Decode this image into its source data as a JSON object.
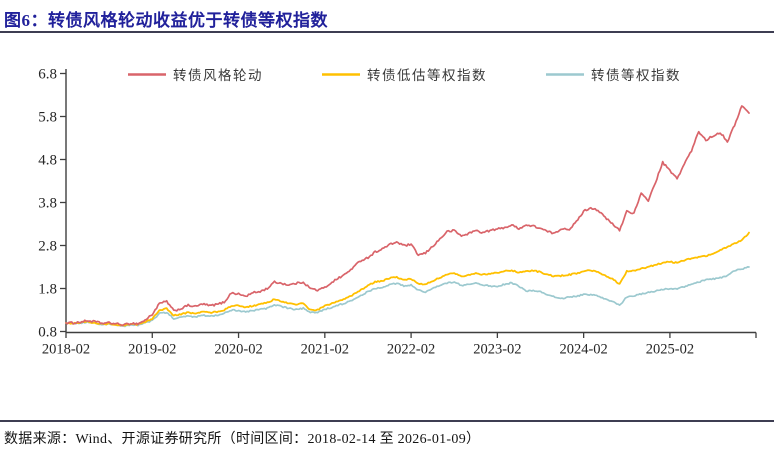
{
  "header": {
    "title": "图6：转债风格轮动收益优于转债等权指数"
  },
  "footer": {
    "source_note": "数据来源：Wind、开源证券研究所（时间区间：2018-02-14 至 2026-01-09）"
  },
  "colors": {
    "title_blue": "#21219B",
    "rule_dark": "#3d3d52",
    "axis": "#3f3f3f",
    "rotation_red": "#D9646A",
    "undervalued_yellow": "#FFC000",
    "equal_weight_teal": "#9CC9CF"
  },
  "chart_data": {
    "type": "line",
    "title": "",
    "xlabel": "",
    "ylabel": "",
    "grid": false,
    "legend_position": "top",
    "ylim": [
      0.8,
      6.8
    ],
    "y_ticks": [
      0.8,
      1.8,
      2.8,
      3.8,
      4.8,
      5.8,
      6.8
    ],
    "x_start": "2018-02",
    "x_end": "2026-01",
    "frequency": "monthly",
    "x_tick_labels": [
      "2018-02",
      "2019-02",
      "2020-02",
      "2021-02",
      "2022-02",
      "2023-02",
      "2024-02",
      "2025-02"
    ],
    "x_tick_indices": [
      0,
      12,
      24,
      36,
      48,
      60,
      72,
      84
    ],
    "series": [
      {
        "name": "转债风格轮动",
        "color": "#D9646A",
        "values": [
          1.0,
          1.0,
          1.02,
          1.05,
          1.03,
          0.99,
          1.0,
          0.98,
          0.95,
          0.99,
          0.98,
          1.06,
          1.2,
          1.45,
          1.5,
          1.28,
          1.33,
          1.41,
          1.38,
          1.44,
          1.4,
          1.43,
          1.48,
          1.7,
          1.67,
          1.62,
          1.7,
          1.73,
          1.8,
          1.95,
          1.92,
          1.88,
          1.92,
          1.95,
          1.8,
          1.76,
          1.82,
          1.95,
          2.05,
          2.15,
          2.3,
          2.45,
          2.52,
          2.65,
          2.72,
          2.82,
          2.88,
          2.8,
          2.82,
          2.58,
          2.62,
          2.78,
          2.95,
          3.12,
          3.15,
          3.02,
          3.08,
          3.15,
          3.1,
          3.15,
          3.18,
          3.22,
          3.27,
          3.2,
          3.27,
          3.25,
          3.2,
          3.12,
          3.08,
          3.2,
          3.18,
          3.35,
          3.6,
          3.68,
          3.62,
          3.45,
          3.3,
          3.15,
          3.6,
          3.55,
          4.0,
          3.85,
          4.27,
          4.73,
          4.54,
          4.35,
          4.7,
          5.0,
          5.45,
          5.25,
          5.35,
          5.43,
          5.22,
          5.6,
          6.05,
          5.88
        ]
      },
      {
        "name": "转债低估等权指数",
        "color": "#FFC000",
        "values": [
          1.0,
          0.99,
          1.01,
          1.03,
          1.0,
          0.97,
          0.98,
          0.96,
          0.93,
          0.97,
          0.96,
          1.02,
          1.1,
          1.3,
          1.33,
          1.17,
          1.2,
          1.24,
          1.22,
          1.26,
          1.24,
          1.26,
          1.3,
          1.4,
          1.4,
          1.36,
          1.4,
          1.43,
          1.47,
          1.55,
          1.5,
          1.45,
          1.43,
          1.46,
          1.3,
          1.3,
          1.4,
          1.45,
          1.52,
          1.58,
          1.66,
          1.76,
          1.87,
          1.95,
          1.98,
          2.04,
          2.06,
          2.0,
          2.02,
          1.92,
          1.9,
          1.98,
          2.05,
          2.12,
          2.16,
          2.08,
          2.12,
          2.16,
          2.12,
          2.15,
          2.17,
          2.2,
          2.22,
          2.17,
          2.2,
          2.22,
          2.18,
          2.12,
          2.08,
          2.1,
          2.12,
          2.15,
          2.2,
          2.22,
          2.18,
          2.1,
          2.02,
          1.9,
          2.2,
          2.22,
          2.26,
          2.3,
          2.35,
          2.4,
          2.42,
          2.4,
          2.46,
          2.5,
          2.53,
          2.56,
          2.6,
          2.7,
          2.76,
          2.85,
          2.92,
          3.1
        ]
      },
      {
        "name": "转债等权指数",
        "color": "#9CC9CF",
        "values": [
          1.0,
          0.99,
          1.0,
          1.02,
          0.99,
          0.96,
          0.97,
          0.95,
          0.92,
          0.96,
          0.95,
          1.0,
          1.05,
          1.22,
          1.24,
          1.1,
          1.13,
          1.16,
          1.14,
          1.18,
          1.16,
          1.18,
          1.22,
          1.3,
          1.29,
          1.25,
          1.29,
          1.31,
          1.34,
          1.42,
          1.38,
          1.34,
          1.31,
          1.34,
          1.24,
          1.24,
          1.32,
          1.36,
          1.42,
          1.47,
          1.54,
          1.63,
          1.73,
          1.8,
          1.83,
          1.89,
          1.92,
          1.86,
          1.88,
          1.76,
          1.72,
          1.8,
          1.87,
          1.93,
          1.95,
          1.87,
          1.89,
          1.93,
          1.88,
          1.86,
          1.84,
          1.9,
          1.93,
          1.85,
          1.74,
          1.76,
          1.72,
          1.65,
          1.6,
          1.57,
          1.6,
          1.62,
          1.66,
          1.66,
          1.62,
          1.56,
          1.5,
          1.41,
          1.6,
          1.63,
          1.67,
          1.71,
          1.74,
          1.78,
          1.8,
          1.79,
          1.84,
          1.9,
          1.95,
          2.0,
          2.02,
          2.05,
          2.1,
          2.22,
          2.25,
          2.3
        ]
      }
    ]
  }
}
